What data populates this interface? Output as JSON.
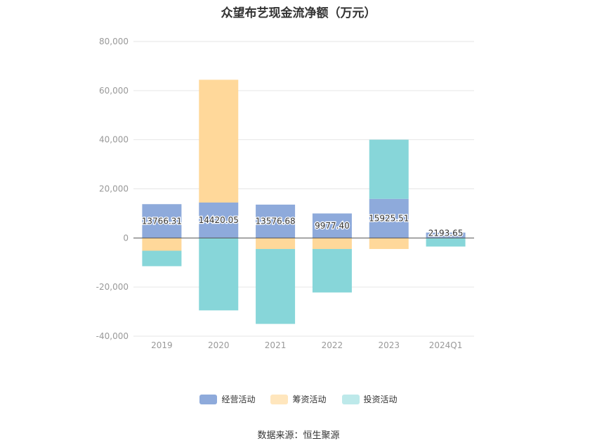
{
  "chart_data": {
    "type": "bar",
    "stacked": true,
    "title": "众望布艺现金流净额（万元）",
    "categories": [
      "2019",
      "2020",
      "2021",
      "2022",
      "2023",
      "2024Q1"
    ],
    "ylim": [
      -40000,
      80000
    ],
    "yticks": [
      80000,
      60000,
      40000,
      20000,
      0,
      -20000,
      -40000
    ],
    "ytick_labels": [
      "80,000",
      "60,000",
      "40,000",
      "20,000",
      "0",
      "-20,000",
      "-40,000"
    ],
    "grid": true,
    "legend_position": "bottom",
    "series": [
      {
        "name": "经营活动",
        "color": "#8eaadb",
        "values": [
          13766.31,
          14420.05,
          13576.68,
          9977.4,
          15925.51,
          2193.65
        ],
        "labels": [
          "13766.31",
          "14420.05",
          "13576.68",
          "9977.40",
          "15925.51",
          "2193.65"
        ]
      },
      {
        "name": "筹资活动",
        "color": "#ffd89a",
        "values": [
          -5200,
          50000,
          -4500,
          -4500,
          -4500,
          0
        ]
      },
      {
        "name": "投资活动",
        "color": "#87d6d9",
        "values": [
          -6300,
          -29500,
          -30500,
          -17700,
          24100,
          -3500
        ]
      }
    ]
  },
  "legend": [
    {
      "label": "经营活动",
      "color": "#8eaadb"
    },
    {
      "label": "筹资活动",
      "color": "#ffe6bd"
    },
    {
      "label": "投资活动",
      "color": "#bde9ea"
    }
  ],
  "source": "数据来源：恒生聚源"
}
